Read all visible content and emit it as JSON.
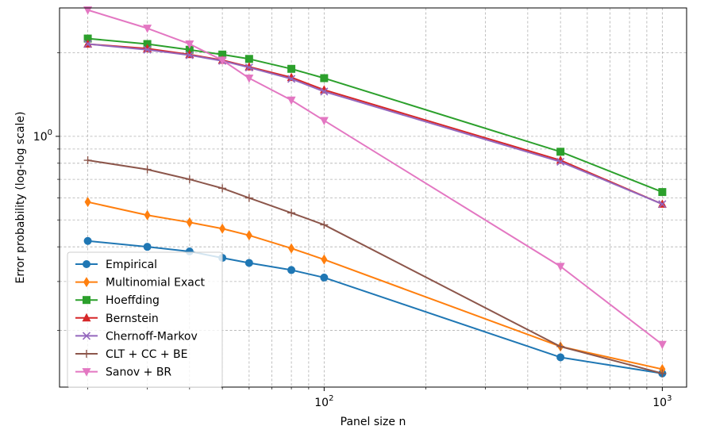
{
  "chart_data": {
    "type": "line",
    "xlabel": "Panel size n",
    "ylabel": "Error probability (log-log scale)",
    "xscale": "log",
    "yscale": "log",
    "xlim": [
      16.5,
      1180
    ],
    "ylim": [
      0.125,
      2.9
    ],
    "grid": true,
    "legend_position": "lower-left",
    "x_tick_labels": [
      {
        "value": 100,
        "base": "10",
        "exp": "2"
      },
      {
        "value": 1000,
        "base": "10",
        "exp": "3"
      }
    ],
    "y_tick_labels": [
      {
        "value": 1,
        "base": "10",
        "exp": "0"
      }
    ],
    "x": [
      20,
      30,
      40,
      50,
      60,
      80,
      100,
      500,
      1000
    ],
    "series": [
      {
        "name": "Empirical",
        "color": "#1f77b4",
        "marker": "circle",
        "values": [
          0.42,
          0.4,
          0.385,
          0.365,
          0.35,
          0.33,
          0.31,
          0.16,
          0.14
        ]
      },
      {
        "name": "Multinomial Exact",
        "color": "#ff7f0e",
        "marker": "thin_diamond",
        "values": [
          0.58,
          0.52,
          0.49,
          0.465,
          0.44,
          0.395,
          0.36,
          0.175,
          0.145
        ]
      },
      {
        "name": "Hoeffding",
        "color": "#2ca02c",
        "marker": "square",
        "values": [
          2.25,
          2.15,
          2.05,
          1.97,
          1.9,
          1.75,
          1.62,
          0.88,
          0.63
        ]
      },
      {
        "name": "Bernstein",
        "color": "#d62728",
        "marker": "triangle-up",
        "values": [
          2.15,
          2.07,
          1.97,
          1.88,
          1.78,
          1.63,
          1.47,
          0.82,
          0.57
        ]
      },
      {
        "name": "Chernoff-Markov",
        "color": "#9467bd",
        "marker": "x",
        "values": [
          2.15,
          2.05,
          1.96,
          1.87,
          1.77,
          1.61,
          1.45,
          0.81,
          0.57
        ]
      },
      {
        "name": "CLT + CC + BE",
        "color": "#8c564b",
        "marker": "plus",
        "values": [
          0.82,
          0.76,
          0.7,
          0.65,
          0.6,
          0.53,
          0.48,
          0.175,
          0.14
        ]
      },
      {
        "name": "Sanov + BR",
        "color": "#e377c2",
        "marker": "triangle-down",
        "values": [
          2.85,
          2.45,
          2.15,
          1.88,
          1.62,
          1.35,
          1.14,
          0.34,
          0.178
        ]
      }
    ]
  }
}
